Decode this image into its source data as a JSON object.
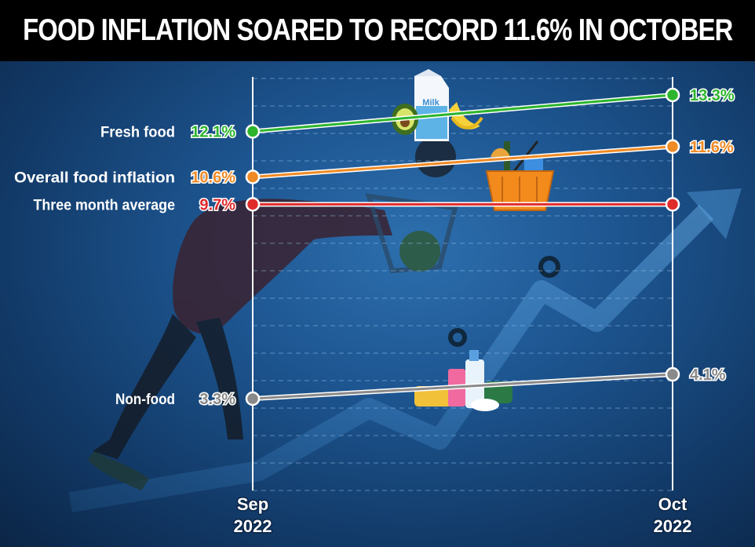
{
  "title": "FOOD INFLATION SOARED TO RECORD 11.6% IN OCTOBER",
  "colors": {
    "fresh_food": "#2db52d",
    "overall_food_inflation": "#f08a24",
    "three_month_average": "#e02b2b",
    "non_food": "#8a8a8a"
  },
  "icons": [
    "person-pushing-cart-icon",
    "milk-carton-icon",
    "avocado-icon",
    "banana-icon",
    "grocery-basket-icon",
    "toiletries-icon",
    "rising-arrow-icon"
  ],
  "chart_data": {
    "type": "line",
    "title": "FOOD INFLATION SOARED TO RECORD 11.6% IN OCTOBER",
    "x": [
      {
        "month": "Sep",
        "year": "2022"
      },
      {
        "month": "Oct",
        "year": "2022"
      }
    ],
    "series": [
      {
        "name": "Fresh food",
        "values": [
          12.1,
          13.3
        ],
        "labels": [
          "12.1%",
          "13.3%"
        ],
        "color": "#2db52d"
      },
      {
        "name": "Overall food inflation",
        "values": [
          10.6,
          11.6
        ],
        "labels": [
          "10.6%",
          "11.6%"
        ],
        "color": "#f08a24"
      },
      {
        "name": "Three month average",
        "values": [
          9.7,
          9.7
        ],
        "labels": [
          "9.7%",
          ""
        ],
        "color": "#e02b2b"
      },
      {
        "name": "Non-food",
        "values": [
          3.3,
          4.1
        ],
        "labels": [
          "3.3%",
          "4.1%"
        ],
        "color": "#8a8a8a"
      }
    ],
    "grid": true,
    "legend": "left"
  }
}
